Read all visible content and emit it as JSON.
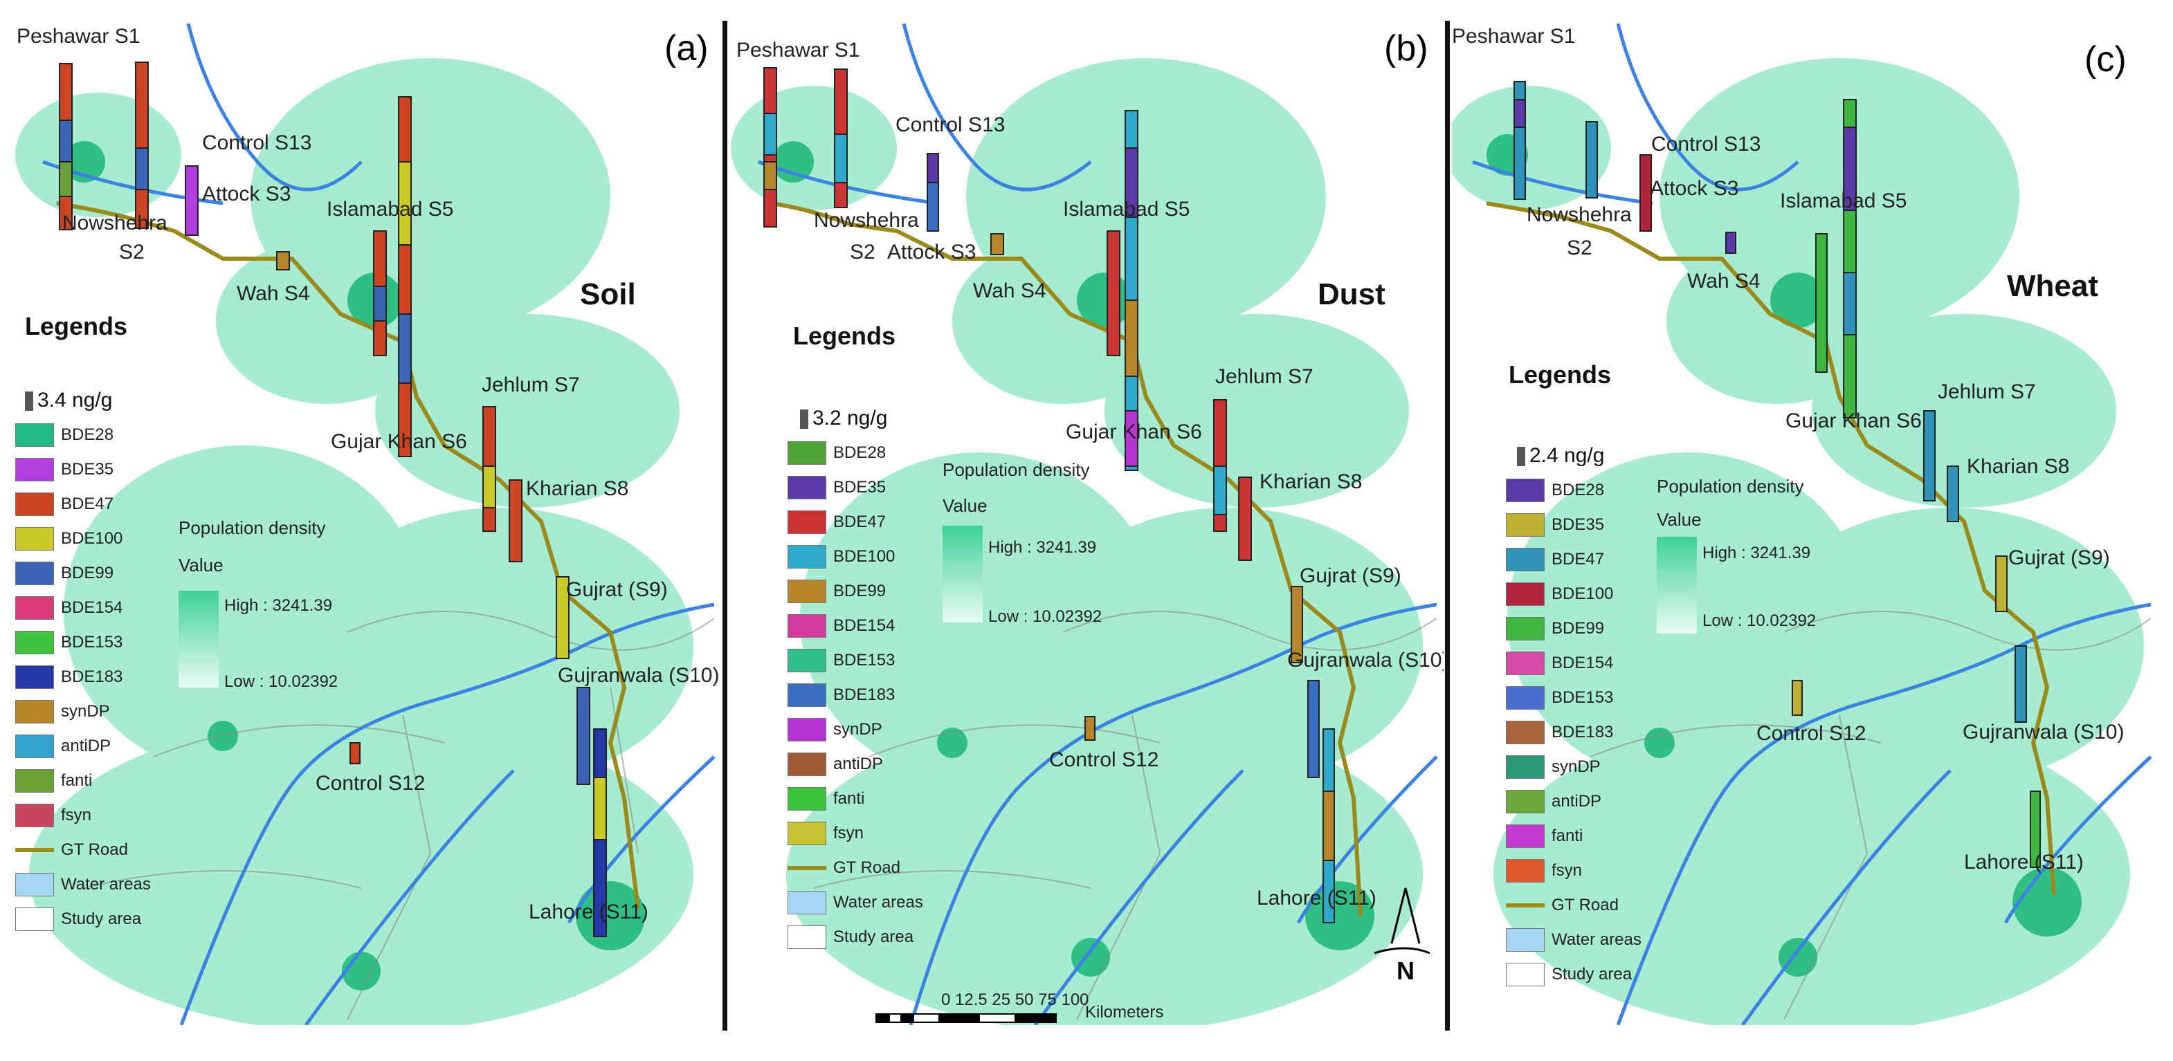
{
  "legend": {
    "title": "Legends",
    "road": "GT Road",
    "water": "Water areas",
    "study": "Study area",
    "population": {
      "title": "Population density",
      "value": "Value",
      "high": "High : 3241.39",
      "low": "Low : 10.02392"
    }
  },
  "colors": {
    "BDE28": "#21b988",
    "BDE35": "#b23ee0",
    "BDE47": "#cc4422",
    "BDE100": "#c9c92a",
    "BDE99": "#3c64b4",
    "BDE154": "#d83a7a",
    "BDE153": "#3fc23f",
    "BDE183": "#2438a8",
    "synDP": "#b8862a",
    "antiDP": "#33a3cc",
    "fanti": "#6aa035",
    "fsyn": "#c8475e",
    "dustBDE28": "#4ea536",
    "dustBDE35": "#5b3aa8",
    "dustBDE47": "#cc3333",
    "dustBDE100": "#2fa9cc",
    "dustBDE99": "#b8862a",
    "dustBDE154": "#d23c9a",
    "dustBDE153": "#2fbf8a",
    "dustBDE183": "#3a6ec2",
    "dustsynDP": "#b634d4",
    "dustantiDP": "#a05a34",
    "dustfanti": "#3ac43a",
    "dustfsyn": "#c7c232",
    "wheatBDE28": "#5a3aa8",
    "wheatBDE35": "#bfb232",
    "wheatBDE47": "#2f94b8",
    "wheatBDE100": "#b0243c",
    "wheatBDE99": "#3fb63f",
    "wheatBDE154": "#d64aa8",
    "wheatBDE153": "#4a6ed0",
    "wheatBDE183": "#a8643a",
    "wheatsynDP": "#2a9a7a",
    "wheatantiDP": "#6aa838",
    "wheatfanti": "#c23ad2",
    "wheatfsyn": "#de5a2a",
    "road": "#9a8a1c",
    "water": "#3c82e0",
    "density": "#3ed197"
  },
  "panels": [
    {
      "letter": "(a)",
      "matrix": "Soil",
      "legend_unit": "3.4  ng/g",
      "items": [
        "BDE28",
        "BDE35",
        "BDE47",
        "BDE100",
        "BDE99",
        "BDE154",
        "BDE153",
        "BDE183",
        "synDP",
        "antiDP",
        "fanti",
        "fsyn"
      ],
      "sites": [
        "Peshawar S1",
        "Nowshehra",
        "S2",
        "Control S13",
        "Attock S3",
        "Islamabad S5",
        "Wah S4",
        "Jehlum S7",
        "Gujar Khan S6",
        "Kharian S8",
        "Gujrat (S9)",
        "Gujranwala (S10)",
        "Control S12",
        "Lahore (S11)"
      ]
    },
    {
      "letter": "(b)",
      "matrix": "Dust",
      "legend_unit": "3.2  ng/g",
      "items": [
        "BDE28",
        "BDE35",
        "BDE47",
        "BDE100",
        "BDE99",
        "BDE154",
        "BDE153",
        "BDE183",
        "synDP",
        "antiDP",
        "fanti",
        "fsyn"
      ],
      "sites": [
        "Peshawar S1",
        "Control S13",
        "Nowshehra",
        "S2",
        "Attock S3",
        "Islamabad S5",
        "Wah S4",
        "Jehlum S7",
        "Gujar Khan S6",
        "Kharian S8",
        "Gujrat (S9)",
        "Gujranwala (S10)",
        "Control S12",
        "Lahore (S11)"
      ],
      "scale": {
        "ticks": "0 12.5 25    50     75    100",
        "unit": "Kilometers"
      },
      "north": "N"
    },
    {
      "letter": "(c)",
      "matrix": "Wheat",
      "legend_unit": "2.4 ng/g",
      "items": [
        "BDE28",
        "BDE35",
        "BDE47",
        "BDE100",
        "BDE99",
        "BDE154",
        "BDE153",
        "BDE183",
        "synDP",
        "antiDP",
        "fanti",
        "fsyn"
      ],
      "sites": [
        "Peshawar S1",
        "Nowshehra",
        "S2",
        "Control S13",
        "Attock S3",
        "Islamabad S5",
        "Wah S4",
        "Jehlum S7",
        "Gujar Khan S6",
        "Kharian S8",
        "Gujrat (S9)",
        "Gujranwala (S10)",
        "Control S12",
        "Lahore (S11)"
      ]
    }
  ]
}
